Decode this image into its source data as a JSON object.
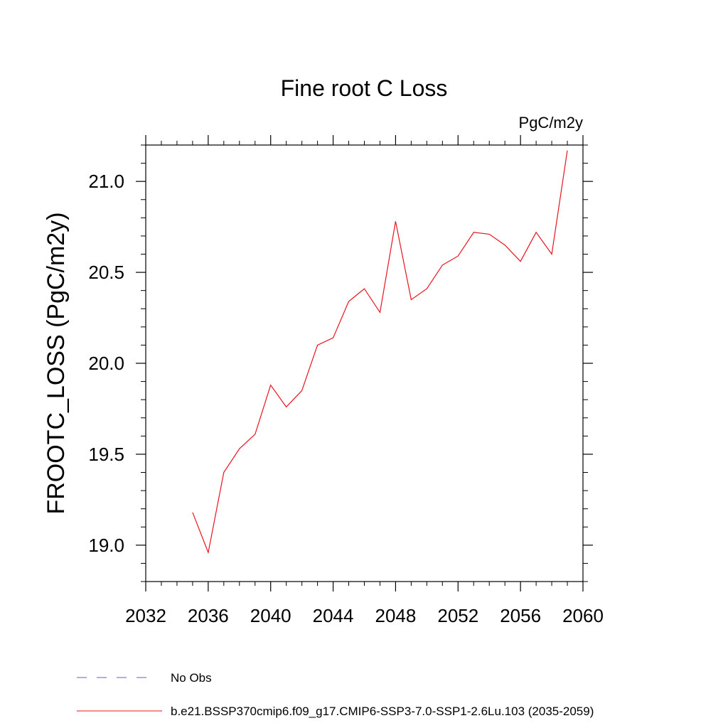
{
  "chart_data": {
    "type": "line",
    "title": "Fine root C Loss",
    "units": "PgC/m2y",
    "ylabel": "FROOTC_LOSS  (PgC/m2y)",
    "xlabel": "",
    "xlim": [
      2032,
      2060
    ],
    "ylim": [
      18.8,
      21.2
    ],
    "xticks": [
      2032,
      2036,
      2040,
      2044,
      2048,
      2052,
      2056,
      2060
    ],
    "yticks": [
      19.0,
      19.5,
      20.0,
      20.5,
      21.0
    ],
    "ytick_labels": [
      "19.0",
      "19.5",
      "20.0",
      "20.5",
      "21.0"
    ],
    "grid": false,
    "legend_position": "bottom-left",
    "series": [
      {
        "name": "b.e21.BSSP370cmip6.f09_g17.CMIP6-SSP3-7.0-SSP1-2.6Lu.103 (2035-2059)",
        "color": "#e8141e",
        "style": "solid",
        "x": [
          2035,
          2036,
          2037,
          2038,
          2039,
          2040,
          2041,
          2042,
          2043,
          2044,
          2045,
          2046,
          2047,
          2048,
          2049,
          2050,
          2051,
          2052,
          2053,
          2054,
          2055,
          2056,
          2057,
          2058,
          2059
        ],
        "y": [
          19.18,
          18.96,
          19.4,
          19.53,
          19.61,
          19.88,
          19.76,
          19.85,
          20.1,
          20.14,
          20.34,
          20.41,
          20.28,
          20.78,
          20.35,
          20.41,
          20.54,
          20.59,
          20.72,
          20.71,
          20.65,
          20.56,
          20.72,
          20.6,
          21.17
        ]
      }
    ],
    "legend": [
      {
        "label": "No Obs",
        "color": "#6a5acd",
        "style": "dashed"
      },
      {
        "label": "b.e21.BSSP370cmip6.f09_g17.CMIP6-SSP3-7.0-SSP1-2.6Lu.103 (2035-2059)",
        "color": "#e8141e",
        "style": "solid"
      }
    ]
  }
}
